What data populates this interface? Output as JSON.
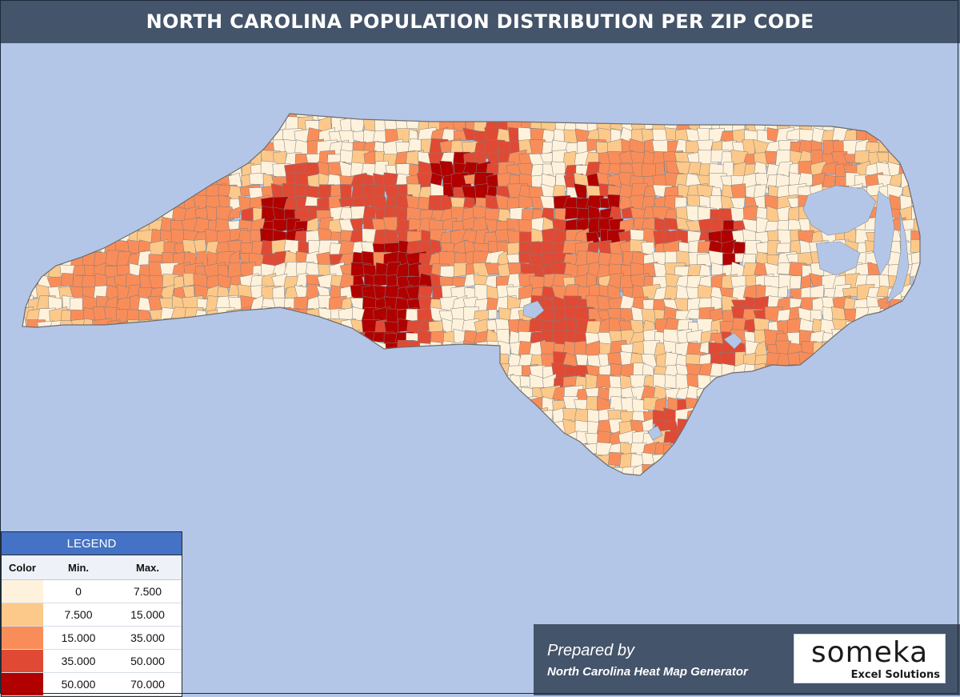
{
  "title": "NORTH CAROLINA POPULATION DISTRIBUTION PER ZIP CODE",
  "colors": {
    "water": "#b4c6e7",
    "header": "#44546a",
    "legend_header": "#4472c4",
    "region_border": "#7d7d7d"
  },
  "legend": {
    "title": "LEGEND",
    "headers": {
      "color": "Color",
      "min": "Min.",
      "max": "Max."
    },
    "rows": [
      {
        "color": "#fff2dc",
        "min": "0",
        "max": "7.500"
      },
      {
        "color": "#fcc98a",
        "min": "7.500",
        "max": "15.000"
      },
      {
        "color": "#f98d59",
        "min": "15.000",
        "max": "35.000"
      },
      {
        "color": "#e04a34",
        "min": "35.000",
        "max": "50.000"
      },
      {
        "color": "#b00000",
        "min": "50.000",
        "max": "70.000"
      }
    ]
  },
  "footer": {
    "prepared_by": "Prepared by",
    "generator": "North Carolina Heat Map Generator",
    "logo_word": "someka",
    "logo_sub": "Excel Solutions"
  }
}
